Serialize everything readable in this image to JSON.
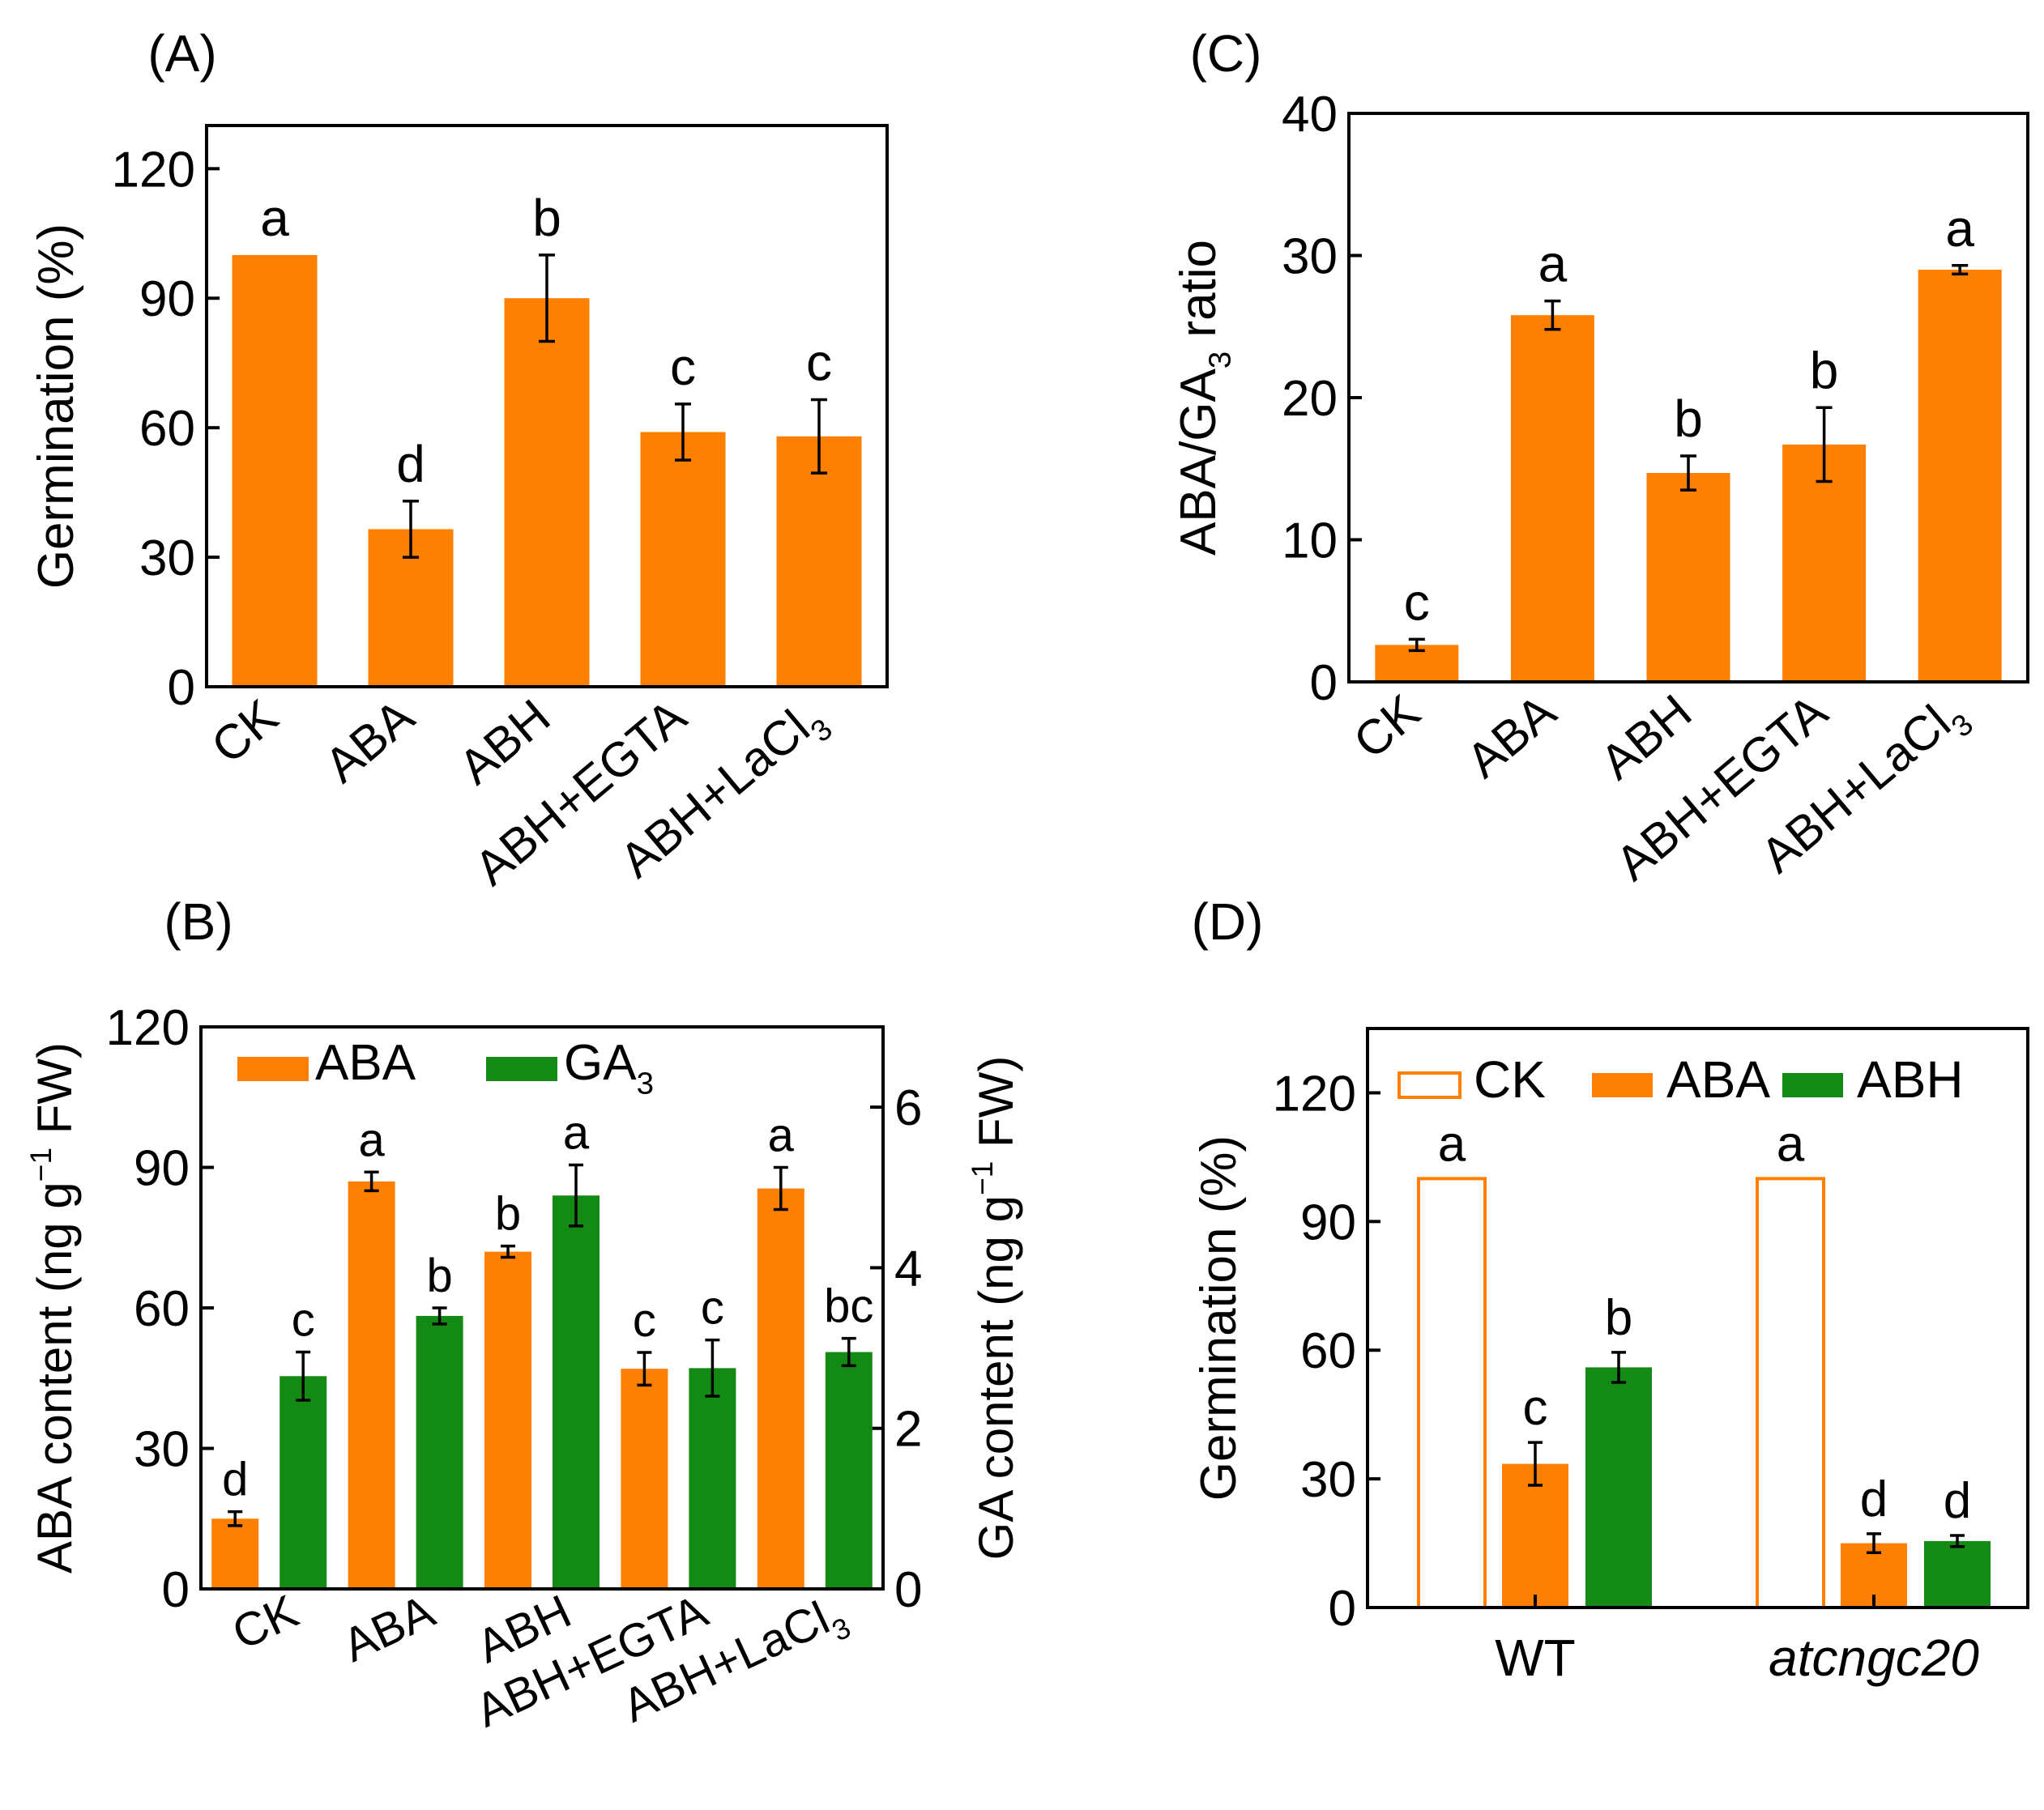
{
  "colors": {
    "orange": "#ff8000",
    "green": "#138a13",
    "white": "#ffffff"
  },
  "chart_data": [
    {
      "id": "A",
      "type": "bar",
      "panel_label": "(A)",
      "ylabel": "Germination (%)",
      "ylim": [
        0,
        130
      ],
      "yticks": [
        0,
        30,
        60,
        90,
        120
      ],
      "categories": [
        {
          "label": "CK"
        },
        {
          "label": "ABA"
        },
        {
          "label": "ABH"
        },
        {
          "label": "ABH+EGTA"
        },
        {
          "label": "ABH+LaCl",
          "sub": "3"
        }
      ],
      "series": [
        {
          "name": "Germination",
          "color": "#ff8000",
          "values": [
            100,
            36.5,
            90,
            59,
            58
          ],
          "errors": [
            0,
            6.5,
            10,
            6.5,
            8.5
          ],
          "letters": [
            "a",
            "d",
            "b",
            "c",
            "c"
          ]
        }
      ]
    },
    {
      "id": "B",
      "type": "bar",
      "panel_label": "(B)",
      "ylabel": "ABA content (ng g-1 FW)",
      "ylabel_parts": [
        "ABA content (ng g",
        "−1",
        " FW)"
      ],
      "ylim": [
        0,
        120
      ],
      "yticks": [
        0,
        30,
        60,
        90,
        120
      ],
      "y2label": "GA content (ng g-1 FW)",
      "y2label_parts": [
        "GA content (ng g",
        "−1",
        " FW)"
      ],
      "y2lim": [
        0,
        7
      ],
      "y2ticks": [
        0,
        2,
        4,
        6
      ],
      "categories": [
        {
          "label": "CK"
        },
        {
          "label": "ABA"
        },
        {
          "label": "ABH"
        },
        {
          "label": "ABH+EGTA"
        },
        {
          "label": "ABH+LaCl",
          "sub": "3"
        }
      ],
      "legend": [
        {
          "label": "ABA",
          "color": "#ff8000"
        },
        {
          "label": "GA",
          "sub": "3",
          "color": "#138a13"
        }
      ],
      "series": [
        {
          "name": "ABA",
          "axis": "left",
          "color": "#ff8000",
          "values": [
            15,
            87,
            72,
            47,
            85.5
          ],
          "errors": [
            1.5,
            2,
            1.2,
            3.5,
            4.5
          ],
          "letters": [
            "d",
            "a",
            "b",
            "c",
            "a"
          ]
        },
        {
          "name": "GA3",
          "axis": "right",
          "color": "#138a13",
          "values": [
            2.65,
            3.4,
            4.9,
            2.75,
            2.95
          ],
          "errors": [
            0.3,
            0.1,
            0.38,
            0.35,
            0.17
          ],
          "letters": [
            "c",
            "b",
            "a",
            "c",
            "bc"
          ]
        }
      ]
    },
    {
      "id": "C",
      "type": "bar",
      "panel_label": "(C)",
      "ylabel": "ABA/GA3 ratio",
      "ylabel_parts": [
        "ABA/GA",
        "3",
        " ratio"
      ],
      "ylim": [
        0,
        40
      ],
      "yticks": [
        0,
        10,
        20,
        30,
        40
      ],
      "categories": [
        {
          "label": "CK"
        },
        {
          "label": "ABA"
        },
        {
          "label": "ABH"
        },
        {
          "label": "ABH+EGTA"
        },
        {
          "label": "ABH+LaCl",
          "sub": "3"
        }
      ],
      "series": [
        {
          "name": "ABA/GA3",
          "color": "#ff8000",
          "values": [
            2.6,
            25.8,
            14.7,
            16.7,
            29
          ],
          "errors": [
            0.4,
            1,
            1.2,
            2.6,
            0.3
          ],
          "letters": [
            "c",
            "a",
            "b",
            "b",
            "a"
          ]
        }
      ]
    },
    {
      "id": "D",
      "type": "bar",
      "panel_label": "(D)",
      "ylabel": "Germination (%)",
      "ylim": [
        0,
        135
      ],
      "yticks": [
        0,
        30,
        60,
        90,
        120
      ],
      "categories": [
        {
          "label": "WT"
        },
        {
          "label": "atcngc20",
          "italic": true
        }
      ],
      "legend": [
        {
          "label": "CK",
          "color": "#ffffff",
          "stroke": "#ff8000"
        },
        {
          "label": "ABA",
          "color": "#ff8000"
        },
        {
          "label": "ABH",
          "color": "#138a13"
        }
      ],
      "series": [
        {
          "name": "CK",
          "color": "#ffffff",
          "stroke": "#ff8000",
          "values": [
            100,
            100
          ],
          "errors": [
            0,
            0
          ],
          "letters": [
            "a",
            "a"
          ]
        },
        {
          "name": "ABA",
          "color": "#ff8000",
          "values": [
            33.5,
            15
          ],
          "errors": [
            5,
            2.2
          ],
          "letters": [
            "c",
            "d"
          ]
        },
        {
          "name": "ABH",
          "color": "#138a13",
          "values": [
            56,
            15.5
          ],
          "errors": [
            3.5,
            1.3
          ],
          "letters": [
            "b",
            "d"
          ]
        }
      ]
    }
  ]
}
